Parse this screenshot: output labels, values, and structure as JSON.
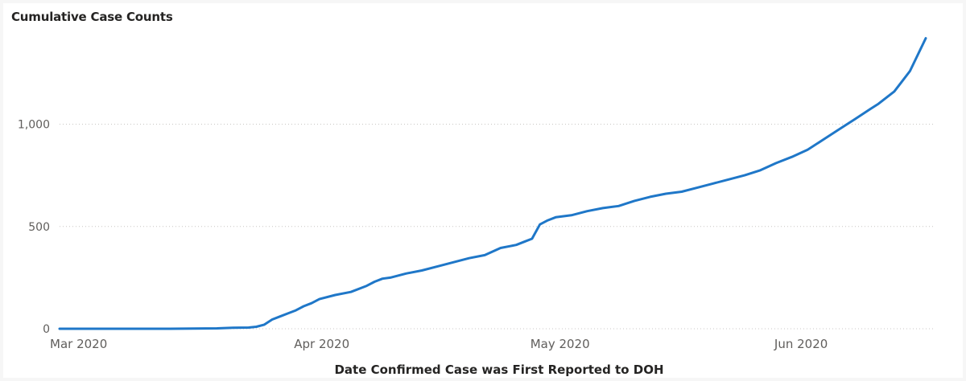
{
  "chart_data": {
    "type": "line",
    "title": "Cumulative Case Counts",
    "xlabel": "Date Confirmed Case was First Reported to DOH",
    "ylabel": "",
    "x_ticks": [
      {
        "date": "2020-03-01",
        "label": "Mar 2020"
      },
      {
        "date": "2020-04-01",
        "label": "Apr 2020"
      },
      {
        "date": "2020-05-01",
        "label": "May 2020"
      },
      {
        "date": "2020-06-01",
        "label": "Jun 2020"
      }
    ],
    "y_ticks": [
      {
        "value": 0,
        "label": "0"
      },
      {
        "value": 500,
        "label": "500"
      },
      {
        "value": 1000,
        "label": "1,000"
      }
    ],
    "xlim": [
      "2020-03-01",
      "2020-06-19"
    ],
    "ylim": [
      0,
      1450
    ],
    "grid": "horizontal-dotted",
    "legend": "none",
    "line_color": "#1f77c8",
    "series": [
      {
        "x": [
          "2020-03-01",
          "2020-03-08",
          "2020-03-15",
          "2020-03-21",
          "2020-03-23",
          "2020-03-25",
          "2020-03-26",
          "2020-03-27",
          "2020-03-28",
          "2020-03-29",
          "2020-03-30",
          "2020-03-31",
          "2020-04-01",
          "2020-04-02",
          "2020-04-03",
          "2020-04-05",
          "2020-04-07",
          "2020-04-09",
          "2020-04-10",
          "2020-04-11",
          "2020-04-12",
          "2020-04-14",
          "2020-04-16",
          "2020-04-18",
          "2020-04-20",
          "2020-04-22",
          "2020-04-24",
          "2020-04-26",
          "2020-04-28",
          "2020-04-29",
          "2020-04-30",
          "2020-05-01",
          "2020-05-02",
          "2020-05-03",
          "2020-05-05",
          "2020-05-07",
          "2020-05-09",
          "2020-05-11",
          "2020-05-13",
          "2020-05-15",
          "2020-05-17",
          "2020-05-19",
          "2020-05-21",
          "2020-05-23",
          "2020-05-25",
          "2020-05-27",
          "2020-05-29",
          "2020-05-31",
          "2020-06-02",
          "2020-06-04",
          "2020-06-06",
          "2020-06-08",
          "2020-06-10",
          "2020-06-12",
          "2020-06-13",
          "2020-06-14",
          "2020-06-15",
          "2020-06-16",
          "2020-06-17",
          "2020-06-18",
          "2020-06-19"
        ],
        "y": [
          0,
          0,
          0,
          2,
          5,
          6,
          10,
          20,
          45,
          60,
          75,
          90,
          110,
          125,
          145,
          165,
          180,
          210,
          230,
          245,
          250,
          270,
          285,
          305,
          325,
          345,
          360,
          395,
          410,
          425,
          440,
          510,
          530,
          545,
          555,
          575,
          590,
          600,
          625,
          645,
          660,
          670,
          690,
          710,
          730,
          750,
          775,
          810,
          840,
          875,
          925,
          975,
          1025,
          1075,
          1100,
          1130,
          1160,
          1210,
          1260,
          1340,
          1420
        ]
      }
    ]
  }
}
